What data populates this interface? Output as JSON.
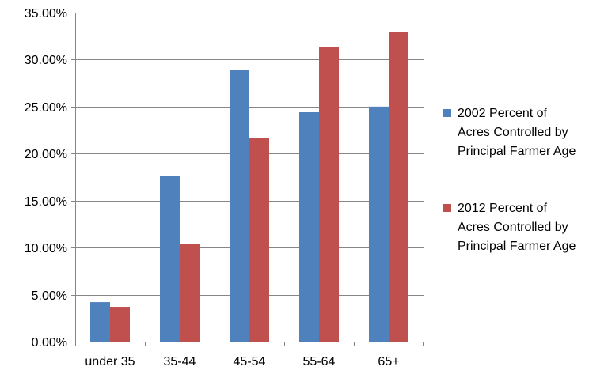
{
  "chart_data": {
    "type": "bar",
    "title": "",
    "xlabel": "",
    "ylabel": "",
    "categories": [
      "under 35",
      "35-44",
      "45-54",
      "55-64",
      "65+"
    ],
    "series": [
      {
        "name_lines": [
          "2002 Percent of",
          "Acres Controlled by",
          "Principal Farmer Age"
        ],
        "color": "#4F81BD",
        "values": [
          4.2,
          17.6,
          28.9,
          24.4,
          25.0
        ]
      },
      {
        "name_lines": [
          "2012 Percent of",
          "Acres Controlled by",
          "Principal Farmer Age"
        ],
        "color": "#C0504D",
        "values": [
          3.7,
          10.4,
          21.7,
          31.3,
          32.9
        ]
      }
    ],
    "ylim": [
      0,
      35
    ],
    "yticks": [
      0,
      5,
      10,
      15,
      20,
      25,
      30,
      35
    ],
    "ytick_labels": [
      "0.00%",
      "5.00%",
      "10.00%",
      "15.00%",
      "20.00%",
      "25.00%",
      "30.00%",
      "35.00%"
    ],
    "grid": true,
    "legend": "right"
  }
}
